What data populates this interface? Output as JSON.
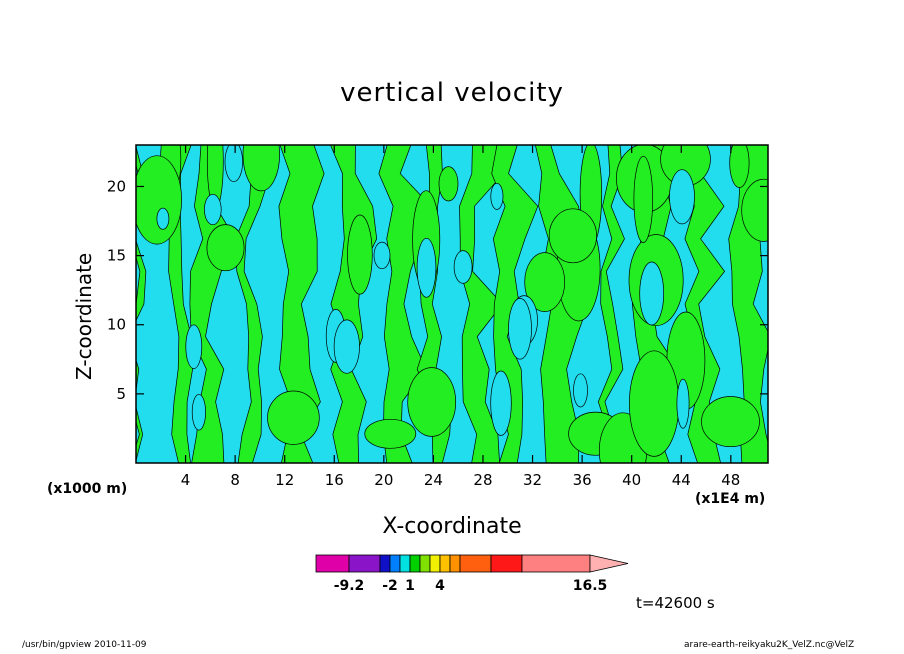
{
  "chart_data": {
    "type": "heatmap",
    "title": "vertical velocity",
    "xlabel": "X-coordinate",
    "ylabel": "Z-coordinate",
    "x_unit_left": "(x1000 m)",
    "x_unit_right": "(x1E4 m)",
    "xlim": [
      0,
      51
    ],
    "ylim": [
      0,
      23
    ],
    "x_ticks": [
      4,
      8,
      12,
      16,
      20,
      24,
      28,
      32,
      36,
      40,
      44,
      48
    ],
    "y_ticks": [
      5,
      10,
      15,
      20
    ],
    "colorbar": {
      "labels": [
        "-9.2",
        "-2",
        "1",
        "4",
        "16.5"
      ],
      "colors": [
        "#e000a8",
        "#8a14c8",
        "#1010c8",
        "#0080ff",
        "#00e0e0",
        "#00d000",
        "#80e000",
        "#f0f000",
        "#ffc000",
        "#ff9000",
        "#ff6010",
        "#ff1818",
        "#ff8080",
        "#ffb0b0"
      ]
    },
    "dominant_fill_colors": {
      "negative": "#22ddee",
      "positive": "#22ee22"
    },
    "time_label": "t=42600 s"
  },
  "footer": {
    "left": "/usr/bin/gpview   2010-11-09",
    "right": "arare-earth-reikyaku2K_VelZ.nc@VelZ"
  }
}
